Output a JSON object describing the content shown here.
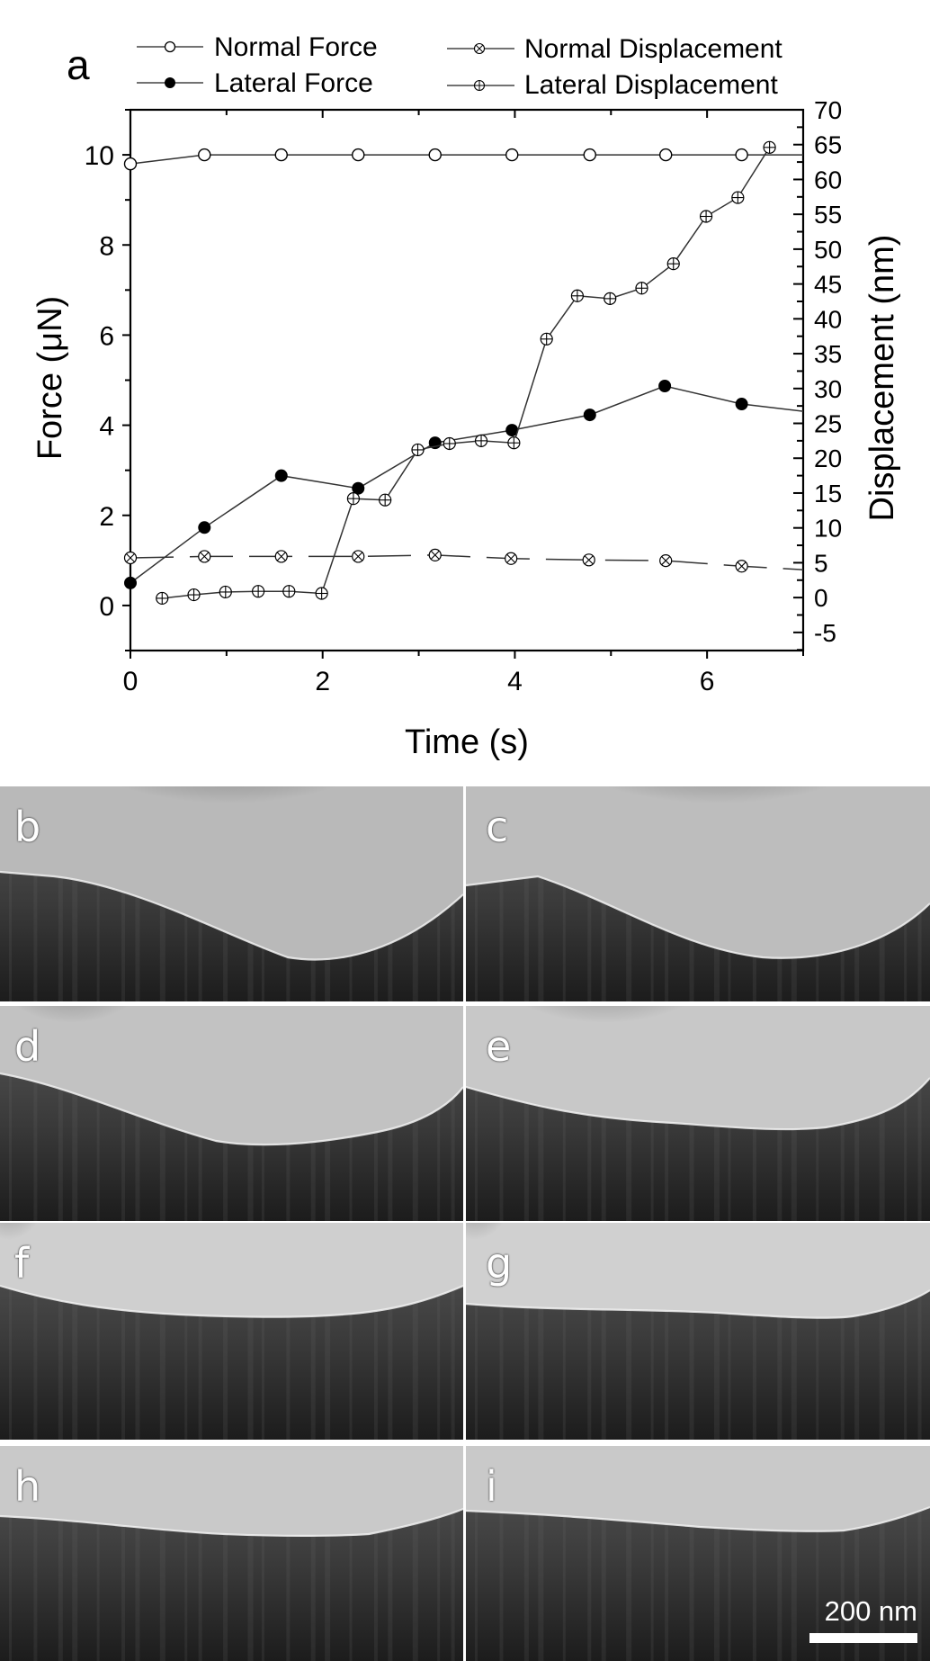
{
  "figure": {
    "panel_a_label": "a",
    "legend": [
      {
        "label": "Normal Force",
        "marker": "open-circle-icon"
      },
      {
        "label": "Lateral Force",
        "marker": "filled-circle-icon"
      },
      {
        "label": "Normal Displacement",
        "marker": "circle-x-icon"
      },
      {
        "label": "Lateral Displacement",
        "marker": "circle-plus-icon"
      }
    ],
    "left_axis": {
      "label": "Force (μN)",
      "ticks": [
        "0",
        "2",
        "4",
        "6",
        "8",
        "10"
      ]
    },
    "right_axis": {
      "label": "Displacement (nm)",
      "ticks": [
        "70",
        "65",
        "60",
        "55",
        "50",
        "45",
        "40",
        "35",
        "30",
        "25",
        "20",
        "15",
        "10",
        "5",
        "0",
        "-5"
      ]
    },
    "x_axis": {
      "label": "Time (s)",
      "ticks": [
        "0",
        "2",
        "4",
        "6"
      ]
    },
    "panels": [
      {
        "label": "b"
      },
      {
        "label": "c"
      },
      {
        "label": "d"
      },
      {
        "label": "e"
      },
      {
        "label": "f"
      },
      {
        "label": "g"
      },
      {
        "label": "h"
      },
      {
        "label": "i"
      }
    ],
    "scale_bar": {
      "label": "200 nm"
    }
  },
  "chart_data": {
    "type": "line",
    "title": "",
    "xlabel": "Time (s)",
    "ylabel": "Force (μN)",
    "y2label": "Displacement (nm)",
    "xlim": [
      0,
      7
    ],
    "ylim": [
      -1,
      11
    ],
    "y2lim": [
      -7.6,
      70
    ],
    "grid": false,
    "legend_position": "top (above plot, 2 columns)",
    "series": [
      {
        "name": "Normal Force",
        "axis": "left",
        "marker": "open-circle",
        "x": [
          0,
          0.77,
          1.57,
          2.37,
          3.17,
          3.97,
          4.78,
          5.57,
          6.36,
          7.0
        ],
        "values": [
          9.8,
          10.0,
          10.0,
          10.0,
          10.0,
          10.0,
          10.0,
          10.0,
          10.0,
          10.0
        ]
      },
      {
        "name": "Lateral Force",
        "axis": "left",
        "marker": "filled-circle",
        "x": [
          0,
          0.77,
          1.57,
          2.37,
          3.17,
          3.97,
          4.78,
          5.56,
          6.36,
          7.0
        ],
        "values": [
          0.5,
          1.73,
          2.88,
          2.6,
          3.61,
          3.89,
          4.23,
          4.87,
          4.47,
          4.31
        ]
      },
      {
        "name": "Normal Displacement",
        "axis": "right",
        "marker": "circle-x",
        "line": "dashed",
        "x": [
          0,
          0.77,
          1.57,
          2.37,
          3.17,
          3.96,
          4.77,
          5.57,
          6.36,
          7.0
        ],
        "values": [
          5.7,
          5.9,
          5.9,
          5.9,
          6.1,
          5.6,
          5.4,
          5.3,
          4.5,
          4.0
        ]
      },
      {
        "name": "Lateral Displacement",
        "axis": "right",
        "marker": "circle-plus",
        "x": [
          0.33,
          0.66,
          0.99,
          1.33,
          1.65,
          1.99,
          2.32,
          2.65,
          2.99,
          3.32,
          3.65,
          3.99,
          4.33,
          4.65,
          4.99,
          5.32,
          5.65,
          5.99,
          6.32,
          6.65
        ],
        "values": [
          -0.1,
          0.4,
          0.8,
          0.9,
          0.9,
          0.6,
          14.2,
          14.0,
          21.2,
          22.1,
          22.5,
          22.2,
          37.1,
          43.3,
          42.9,
          44.4,
          47.9,
          54.7,
          57.4,
          64.6
        ]
      }
    ]
  }
}
